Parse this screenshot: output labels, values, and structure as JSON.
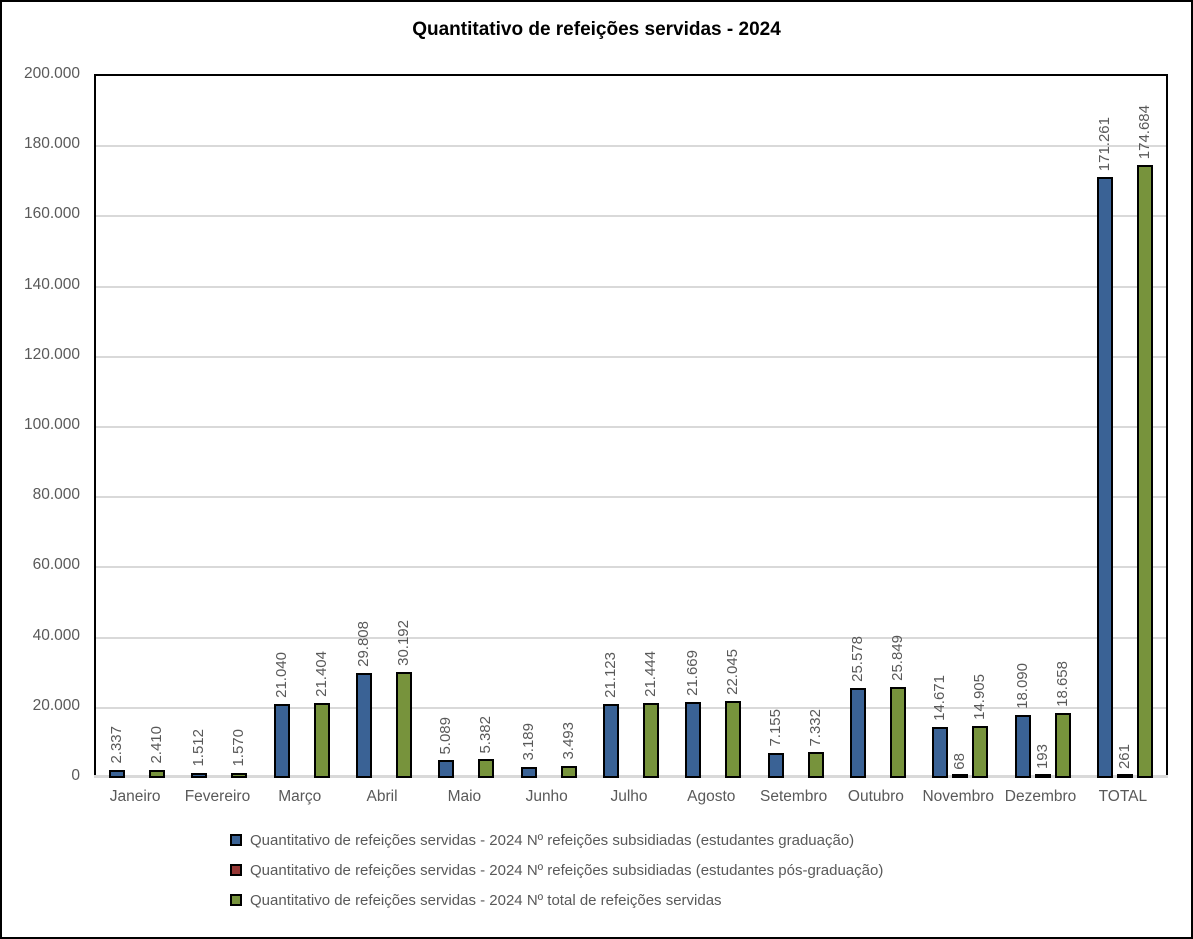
{
  "chart_data": {
    "type": "bar",
    "title": "Quantitativo de refeições servidas - 2024",
    "categories": [
      "Janeiro",
      "Fevereiro",
      "Março",
      "Abril",
      "Maio",
      "Junho",
      "Julho",
      "Agosto",
      "Setembro",
      "Outubro",
      "Novembro",
      "Dezembro",
      "TOTAL"
    ],
    "series": [
      {
        "name": "Quantitativo de refeições servidas - 2024 Nº refeições subsidiadas (estudantes graduação)",
        "color": "#3A6295",
        "values": [
          2337,
          1512,
          21040,
          29808,
          5089,
          3189,
          21123,
          21669,
          7155,
          25578,
          14671,
          18090,
          171261
        ],
        "labels": [
          "2.337",
          "1.512",
          "21.040",
          "29.808",
          "5.089",
          "3.189",
          "21.123",
          "21.669",
          "7.155",
          "25.578",
          "14.671",
          "18.090",
          "171.261"
        ]
      },
      {
        "name": "Quantitativo de refeições servidas - 2024 Nº refeições subsidiadas (estudantes pós-graduação)",
        "color": "#963735",
        "values": [
          null,
          null,
          null,
          null,
          null,
          null,
          null,
          null,
          null,
          null,
          68,
          193,
          261
        ],
        "labels": [
          null,
          null,
          null,
          null,
          null,
          null,
          null,
          null,
          null,
          null,
          "68",
          "193",
          "261"
        ]
      },
      {
        "name": "Quantitativo de refeições servidas - 2024 Nº total de refeições servidas",
        "color": "#77933C",
        "values": [
          2410,
          1570,
          21404,
          30192,
          5382,
          3493,
          21444,
          22045,
          7332,
          25849,
          14905,
          18658,
          174684
        ],
        "labels": [
          "2.410",
          "1.570",
          "21.404",
          "30.192",
          "5.382",
          "3.493",
          "21.444",
          "22.045",
          "7.332",
          "25.849",
          "14.905",
          "18.658",
          "174.684"
        ]
      }
    ],
    "xlabel": "",
    "ylabel": "",
    "ylim": [
      0,
      200000
    ],
    "ytick_step": 20000,
    "ytick_labels": [
      "0",
      "20.000",
      "40.000",
      "60.000",
      "80.000",
      "100.000",
      "120.000",
      "140.000",
      "160.000",
      "180.000",
      "200.000"
    ],
    "grid": true,
    "legend_position": "bottom",
    "style_colors": {
      "gridline": "#D9D9D9",
      "axis_line": "#D9D9D9",
      "label_text": "#595959",
      "title_text": "#000000",
      "bar_outline": "#000000"
    }
  }
}
